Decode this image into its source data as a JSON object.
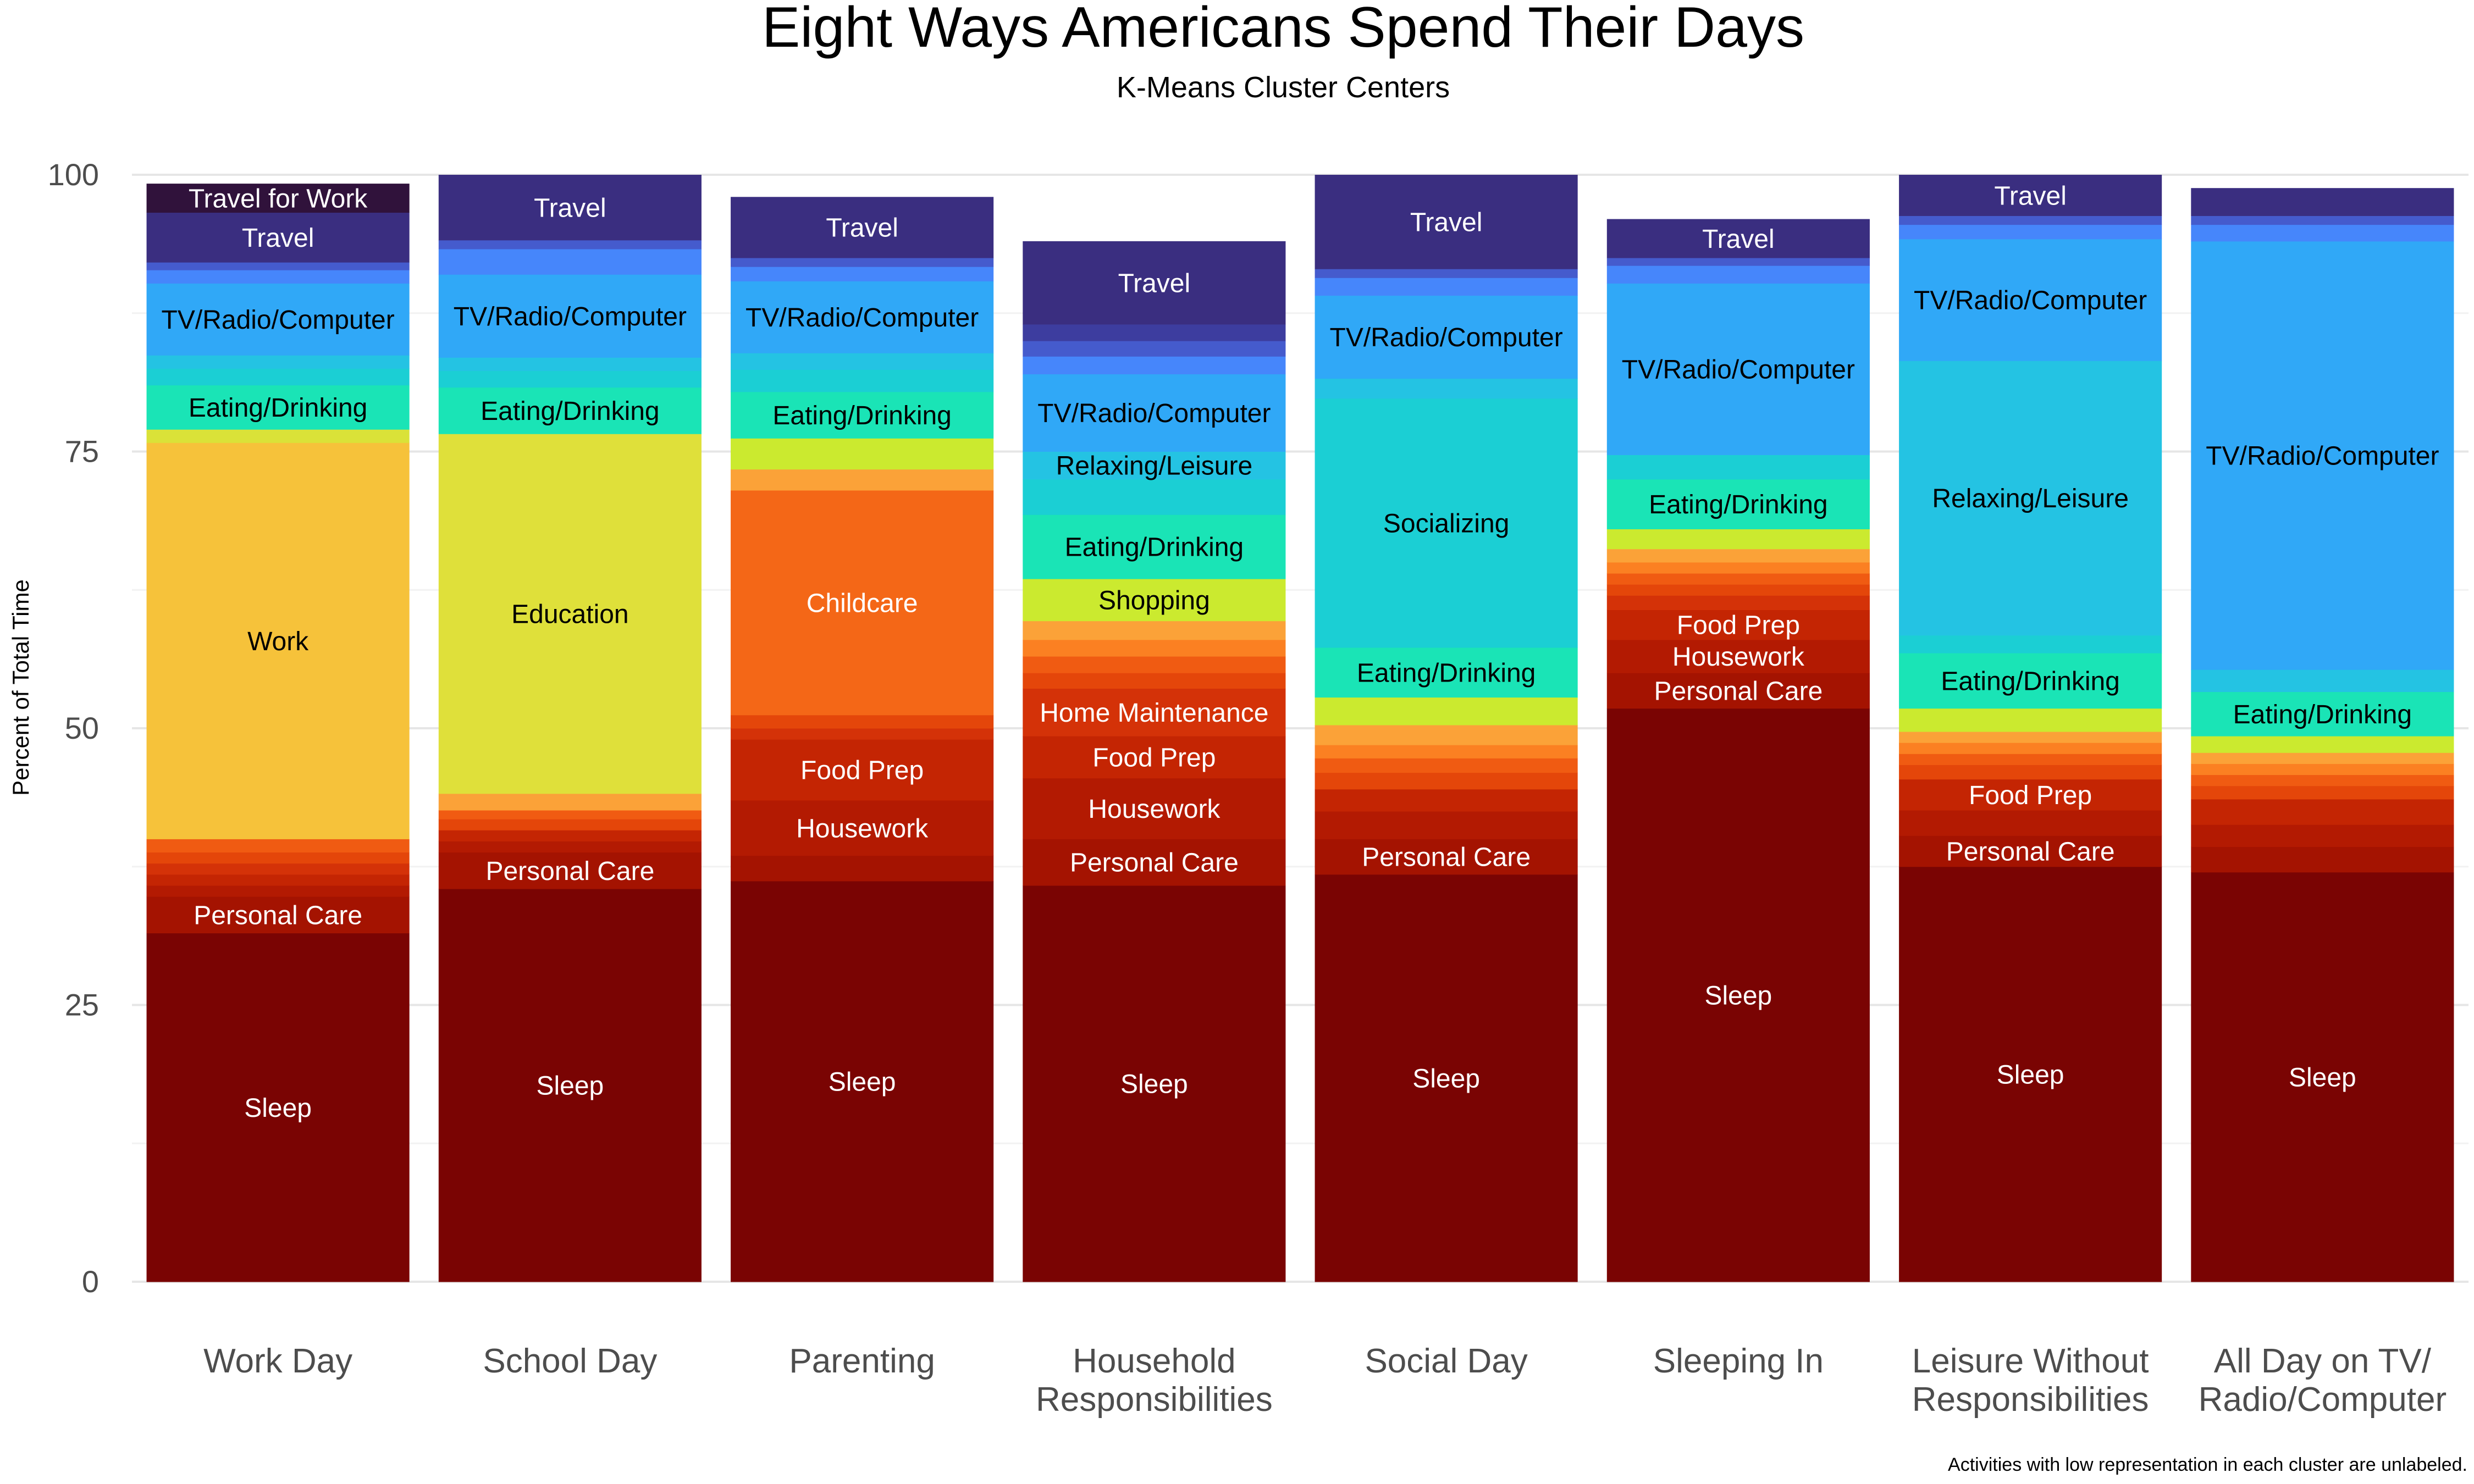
{
  "chart_data": {
    "type": "bar",
    "stacked": true,
    "title": "Eight Ways Americans Spend Their Days",
    "subtitle": "K-Means Cluster Centers",
    "ylabel": "Percent of Total Time",
    "xlabel": "",
    "ylim": [
      0,
      100
    ],
    "yticks": [
      0,
      25,
      50,
      75,
      100
    ],
    "grid": true,
    "legend": "none",
    "caption": "Activities with low representation in each cluster are unlabeled.",
    "categories": [
      [
        "Work Day"
      ],
      [
        "School Day"
      ],
      [
        "Parenting"
      ],
      [
        "Household",
        "Responsibilities"
      ],
      [
        "Social Day"
      ],
      [
        "Sleeping In"
      ],
      [
        "Leisure Without",
        "Responsibilities"
      ],
      [
        "All Day on TV/",
        "Radio/Computer"
      ]
    ],
    "bars": [
      {
        "segments": [
          {
            "label": "Sleep",
            "value": 31.5,
            "color": "#7a0403"
          },
          {
            "label": "Personal Care",
            "value": 3.3,
            "color": "#a41301"
          },
          {
            "value": 1.0,
            "color": "#b31a02"
          },
          {
            "value": 1.0,
            "color": "#c42503"
          },
          {
            "value": 1.0,
            "color": "#d43208"
          },
          {
            "value": 1.0,
            "color": "#e4460a"
          },
          {
            "value": 1.2,
            "color": "#f05b12"
          },
          {
            "label": "Work",
            "value": 35.8,
            "color": "#f6c23a"
          },
          {
            "value": 1.2,
            "color": "#dae238"
          },
          {
            "label": "Eating/Drinking",
            "value": 4.0,
            "color": "#1ae4b6"
          },
          {
            "value": 1.5,
            "color": "#1bcfd4"
          },
          {
            "value": 1.2,
            "color": "#24c3e3"
          },
          {
            "label": "TV/Radio/Computer",
            "value": 6.5,
            "color": "#30a8f7"
          },
          {
            "value": 1.2,
            "color": "#4686fb"
          },
          {
            "value": 0.7,
            "color": "#455bcd"
          },
          {
            "label": "Travel",
            "value": 4.5,
            "color": "#3a2e80"
          },
          {
            "label": "Travel for Work",
            "value": 2.6,
            "color": "#30123b"
          }
        ]
      },
      {
        "segments": [
          {
            "label": "Sleep",
            "value": 35.5,
            "color": "#7a0403"
          },
          {
            "label": "Personal Care",
            "value": 3.3,
            "color": "#a41301"
          },
          {
            "value": 1.0,
            "color": "#b31a02"
          },
          {
            "value": 1.0,
            "color": "#c42503"
          },
          {
            "value": 1.0,
            "color": "#e4460a"
          },
          {
            "value": 0.8,
            "color": "#f05b12"
          },
          {
            "value": 1.5,
            "color": "#fba238"
          },
          {
            "label": "Education",
            "value": 32.5,
            "color": "#dfe03a"
          },
          {
            "label": "Eating/Drinking",
            "value": 4.2,
            "color": "#1ae4b6"
          },
          {
            "value": 1.5,
            "color": "#1bcfd4"
          },
          {
            "value": 1.2,
            "color": "#24c3e3"
          },
          {
            "label": "TV/Radio/Computer",
            "value": 7.5,
            "color": "#30a8f7"
          },
          {
            "value": 2.3,
            "color": "#4686fb"
          },
          {
            "value": 0.8,
            "color": "#455bcd"
          },
          {
            "label": "Travel",
            "value": 5.9,
            "color": "#3a2e80"
          }
        ]
      },
      {
        "segments": [
          {
            "label": "Sleep",
            "value": 36.2,
            "color": "#7a0403"
          },
          {
            "value": 2.3,
            "color": "#a41301"
          },
          {
            "label": "Housework",
            "value": 5.0,
            "color": "#b31a02"
          },
          {
            "label": "Food Prep",
            "value": 5.5,
            "color": "#c42503"
          },
          {
            "value": 1.0,
            "color": "#d43208"
          },
          {
            "value": 1.2,
            "color": "#e4460a"
          },
          {
            "label": "Childcare",
            "value": 20.3,
            "color": "#f46717"
          },
          {
            "value": 1.9,
            "color": "#fba238"
          },
          {
            "value": 2.8,
            "color": "#cbea2f"
          },
          {
            "label": "Eating/Drinking",
            "value": 4.2,
            "color": "#1ae4b6"
          },
          {
            "value": 2.0,
            "color": "#1bcfd4"
          },
          {
            "value": 1.5,
            "color": "#24c3e3"
          },
          {
            "label": "TV/Radio/Computer",
            "value": 6.5,
            "color": "#30a8f7"
          },
          {
            "value": 1.3,
            "color": "#4686fb"
          },
          {
            "value": 0.8,
            "color": "#455bcd"
          },
          {
            "label": "Travel",
            "value": 5.5,
            "color": "#3a2e80"
          }
        ]
      },
      {
        "segments": [
          {
            "label": "Sleep",
            "value": 35.8,
            "color": "#7a0403"
          },
          {
            "label": "Personal Care",
            "value": 4.2,
            "color": "#a41301"
          },
          {
            "label": "Housework",
            "value": 5.5,
            "color": "#b31a02"
          },
          {
            "label": "Food Prep",
            "value": 3.8,
            "color": "#c42503"
          },
          {
            "label": "Home Maintenance",
            "value": 4.3,
            "color": "#d43208"
          },
          {
            "value": 1.4,
            "color": "#e4460a"
          },
          {
            "value": 1.5,
            "color": "#f05b12"
          },
          {
            "value": 1.5,
            "color": "#fb8022"
          },
          {
            "value": 1.7,
            "color": "#fba238"
          },
          {
            "label": "Shopping",
            "value": 3.8,
            "color": "#cbea2f"
          },
          {
            "label": "Eating/Drinking",
            "value": 5.8,
            "color": "#1ae4b6"
          },
          {
            "value": 3.2,
            "color": "#1bcfd4"
          },
          {
            "label": "Relaxing/Leisure",
            "value": 2.5,
            "color": "#24c3e3"
          },
          {
            "label": "TV/Radio/Computer",
            "value": 7.0,
            "color": "#30a8f7"
          },
          {
            "value": 1.6,
            "color": "#4686fb"
          },
          {
            "value": 1.4,
            "color": "#455bcd"
          },
          {
            "value": 1.5,
            "color": "#3d3d9f"
          },
          {
            "label": "Travel",
            "value": 7.5,
            "color": "#3a2e80"
          }
        ]
      },
      {
        "segments": [
          {
            "label": "Sleep",
            "value": 36.8,
            "color": "#7a0403"
          },
          {
            "label": "Personal Care",
            "value": 3.2,
            "color": "#a41301"
          },
          {
            "value": 2.5,
            "color": "#b31a02"
          },
          {
            "value": 2.0,
            "color": "#c42503"
          },
          {
            "value": 1.5,
            "color": "#e4460a"
          },
          {
            "value": 1.3,
            "color": "#f05b12"
          },
          {
            "value": 1.2,
            "color": "#fb8022"
          },
          {
            "value": 1.8,
            "color": "#fba238"
          },
          {
            "value": 2.5,
            "color": "#cbea2f"
          },
          {
            "label": "Eating/Drinking",
            "value": 4.5,
            "color": "#1ae4b6"
          },
          {
            "label": "Socializing",
            "value": 22.5,
            "color": "#1bcfd4"
          },
          {
            "value": 1.8,
            "color": "#24c3e3"
          },
          {
            "label": "TV/Radio/Computer",
            "value": 7.5,
            "color": "#30a8f7"
          },
          {
            "value": 1.6,
            "color": "#4686fb"
          },
          {
            "value": 0.8,
            "color": "#455bcd"
          },
          {
            "label": "Travel",
            "value": 8.5,
            "color": "#3a2e80"
          }
        ]
      },
      {
        "segments": [
          {
            "label": "Sleep",
            "value": 51.8,
            "color": "#7a0403"
          },
          {
            "label": "Personal Care",
            "value": 3.2,
            "color": "#a41301"
          },
          {
            "label": "Housework",
            "value": 3.0,
            "color": "#b31a02"
          },
          {
            "label": "Food Prep",
            "value": 2.7,
            "color": "#c42503"
          },
          {
            "value": 1.3,
            "color": "#d43208"
          },
          {
            "value": 1.0,
            "color": "#e4460a"
          },
          {
            "value": 1.0,
            "color": "#f05b12"
          },
          {
            "value": 1.0,
            "color": "#fb8022"
          },
          {
            "value": 1.2,
            "color": "#fba238"
          },
          {
            "value": 1.8,
            "color": "#cbea2f"
          },
          {
            "label": "Eating/Drinking",
            "value": 4.5,
            "color": "#1ae4b6"
          },
          {
            "value": 2.2,
            "color": "#1bcfd4"
          },
          {
            "label": "TV/Radio/Computer",
            "value": 15.5,
            "color": "#30a8f7"
          },
          {
            "value": 1.6,
            "color": "#4686fb"
          },
          {
            "value": 0.7,
            "color": "#455bcd"
          },
          {
            "label": "Travel",
            "value": 3.5,
            "color": "#3a2e80"
          }
        ]
      },
      {
        "segments": [
          {
            "label": "Sleep",
            "value": 37.5,
            "color": "#7a0403"
          },
          {
            "label": "Personal Care",
            "value": 2.8,
            "color": "#a41301"
          },
          {
            "value": 2.3,
            "color": "#b31a02"
          },
          {
            "label": "Food Prep",
            "value": 2.8,
            "color": "#c42503"
          },
          {
            "value": 1.3,
            "color": "#e4460a"
          },
          {
            "value": 1.0,
            "color": "#f05b12"
          },
          {
            "value": 1.0,
            "color": "#fb8022"
          },
          {
            "value": 1.0,
            "color": "#fba238"
          },
          {
            "value": 2.1,
            "color": "#cbea2f"
          },
          {
            "label": "Eating/Drinking",
            "value": 5.0,
            "color": "#1ae4b6"
          },
          {
            "value": 1.6,
            "color": "#1bcfd4"
          },
          {
            "label": "Relaxing/Leisure",
            "value": 24.8,
            "color": "#24c3e3"
          },
          {
            "label": "TV/Radio/Computer",
            "value": 11.0,
            "color": "#30a8f7"
          },
          {
            "value": 1.3,
            "color": "#4686fb"
          },
          {
            "value": 0.8,
            "color": "#455bcd"
          },
          {
            "label": "Travel",
            "value": 3.7,
            "color": "#3a2e80"
          }
        ]
      },
      {
        "segments": [
          {
            "label": "Sleep",
            "value": 37.0,
            "color": "#7a0403"
          },
          {
            "value": 2.3,
            "color": "#a41301"
          },
          {
            "value": 2.0,
            "color": "#b31a02"
          },
          {
            "value": 2.3,
            "color": "#c42503"
          },
          {
            "value": 1.2,
            "color": "#e4460a"
          },
          {
            "value": 1.0,
            "color": "#f05b12"
          },
          {
            "value": 1.0,
            "color": "#fb8022"
          },
          {
            "value": 1.0,
            "color": "#fba238"
          },
          {
            "value": 1.5,
            "color": "#cbea2f"
          },
          {
            "label": "Eating/Drinking",
            "value": 4.0,
            "color": "#1ae4b6"
          },
          {
            "value": 2.0,
            "color": "#24c3e3"
          },
          {
            "label": "TV/Radio/Computer",
            "value": 38.7,
            "color": "#30a8f7"
          },
          {
            "value": 1.5,
            "color": "#4686fb"
          },
          {
            "value": 0.8,
            "color": "#455bcd"
          },
          {
            "value": 2.5,
            "color": "#3a2e80"
          }
        ]
      }
    ]
  }
}
